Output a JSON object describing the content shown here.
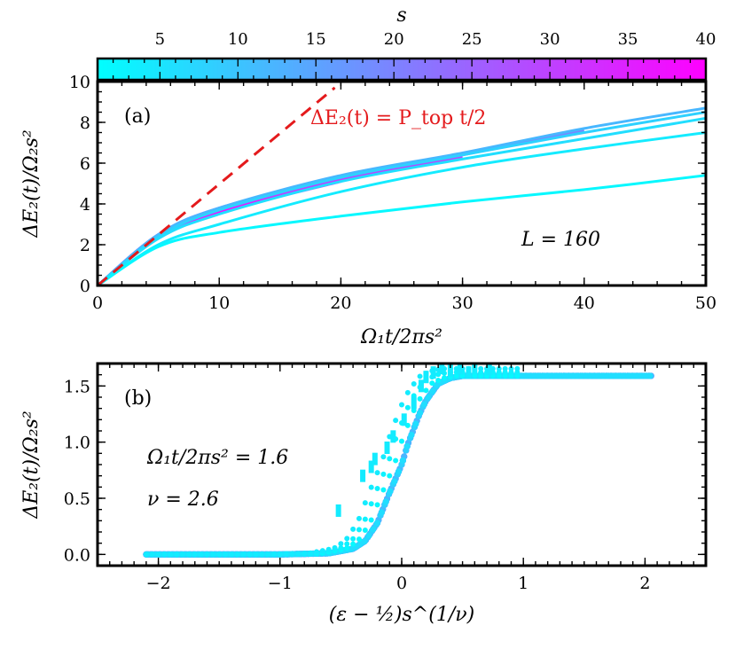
{
  "colorbar": {
    "label": "s",
    "ticks": [
      "5",
      "10",
      "15",
      "20",
      "25",
      "30",
      "35",
      "40"
    ],
    "tick_values": [
      5,
      10,
      15,
      20,
      25,
      30,
      35,
      40
    ],
    "range": [
      1,
      40
    ],
    "colors": {
      "low": "#00ffff",
      "high": "#ff00ff"
    }
  },
  "panel_a": {
    "label": "(a)",
    "xlabel": "Ω₁t/2πs²",
    "ylabel": "ΔE₂(t)/Ω₂s²",
    "annotation_L": "L = 160",
    "dashed_label": "ΔE₂(t) = P_top t/2",
    "x_ticks": [
      "0",
      "10",
      "20",
      "30",
      "40",
      "50"
    ],
    "y_ticks": [
      "0",
      "2",
      "4",
      "6",
      "8",
      "10"
    ]
  },
  "panel_b": {
    "label": "(b)",
    "xlabel": "(ε − ½)s^(1/ν)",
    "ylabel": "ΔE₂(t)/Ω₂s²",
    "annotation_time": "Ω₁t/2πs² = 1.6",
    "annotation_nu": "ν = 2.6",
    "x_ticks": [
      "−2",
      "−1",
      "0",
      "1",
      "2"
    ],
    "y_ticks": [
      "0.0",
      "0.5",
      "1.0",
      "1.5"
    ]
  },
  "chart_data": [
    {
      "type": "line",
      "title": "(a)",
      "xlabel": "Ω₁t/2πs²",
      "ylabel": "ΔE₂(t)/Ω₂s²",
      "xlim": [
        0,
        50
      ],
      "ylim": [
        0,
        10
      ],
      "series": [
        {
          "name": "s=2",
          "s": 2,
          "x": [
            0,
            5,
            10,
            20,
            30,
            40,
            50
          ],
          "y": [
            0,
            1.9,
            2.6,
            3.4,
            4.1,
            4.7,
            5.4
          ]
        },
        {
          "name": "s=4",
          "s": 4,
          "x": [
            0,
            5,
            10,
            20,
            30,
            40,
            50
          ],
          "y": [
            0,
            2.0,
            3.0,
            4.6,
            5.8,
            6.7,
            7.5
          ]
        },
        {
          "name": "s=6",
          "s": 6,
          "x": [
            0,
            5,
            10,
            20,
            30,
            40,
            50
          ],
          "y": [
            0,
            2.3,
            3.5,
            5.1,
            6.2,
            7.2,
            8.2
          ]
        },
        {
          "name": "s=8",
          "s": 8,
          "x": [
            0,
            5,
            10,
            20,
            30,
            40,
            50
          ],
          "y": [
            0,
            2.4,
            3.7,
            5.3,
            6.4,
            7.5,
            8.5
          ]
        },
        {
          "name": "s=12",
          "s": 12,
          "x": [
            0,
            5,
            10,
            20,
            30,
            40,
            50
          ],
          "y": [
            0,
            2.5,
            3.8,
            5.4,
            6.5,
            7.7,
            8.7
          ]
        },
        {
          "name": "s=20",
          "s": 20,
          "x": [
            0,
            5,
            10,
            20,
            30,
            40
          ],
          "y": [
            0,
            2.5,
            3.8,
            5.3,
            6.4,
            7.6
          ]
        },
        {
          "name": "s=30",
          "s": 30,
          "x": [
            0,
            5,
            10,
            20,
            30
          ],
          "y": [
            0,
            2.5,
            3.7,
            5.2,
            6.3
          ]
        },
        {
          "name": "s=40",
          "s": 40,
          "x": [
            0,
            5,
            10,
            20
          ],
          "y": [
            0,
            2.4,
            3.6,
            5.1
          ]
        }
      ],
      "reference_line": {
        "name": "ΔE₂(t) = P_top t/2",
        "x": [
          0,
          19.5
        ],
        "y": [
          0,
          9.7
        ],
        "style": "dashed",
        "color": "#e41a1c"
      },
      "annotations": [
        "(a)",
        "L = 160"
      ]
    },
    {
      "type": "scatter",
      "title": "(b)",
      "xlabel": "(ε − ½)s^(1/ν)",
      "ylabel": "ΔE₂(t)/Ω₂s²",
      "xlim": [
        -2.5,
        2.5
      ],
      "ylim": [
        -0.1,
        1.7
      ],
      "collapse_curve": {
        "x": [
          -2.1,
          -1.0,
          -0.6,
          -0.4,
          -0.3,
          -0.2,
          -0.1,
          0.0,
          0.05,
          0.1,
          0.15,
          0.2,
          0.3,
          0.4,
          0.5,
          1.0,
          2.05
        ],
        "y": [
          0.0,
          0.0,
          0.01,
          0.05,
          0.12,
          0.28,
          0.55,
          0.8,
          0.98,
          1.12,
          1.26,
          1.37,
          1.52,
          1.57,
          1.59,
          1.59,
          1.59
        ]
      },
      "scatter_outliers": {
        "s": 4,
        "x": [
          -0.52,
          -0.32,
          -0.25,
          -0.22,
          -0.12,
          -0.07,
          0.02,
          0.1,
          0.16,
          0.2,
          0.26,
          0.33,
          0.4,
          0.48,
          0.55,
          0.6,
          0.72
        ],
        "y": [
          0.39,
          0.7,
          0.78,
          0.85,
          0.95,
          1.05,
          1.2,
          1.35,
          1.5,
          1.58,
          1.62,
          1.66,
          1.64,
          1.66,
          1.62,
          1.68,
          1.65
        ]
      },
      "annotations": [
        "(b)",
        "Ω₁t/2πs² = 1.6",
        "ν = 2.6"
      ]
    }
  ]
}
